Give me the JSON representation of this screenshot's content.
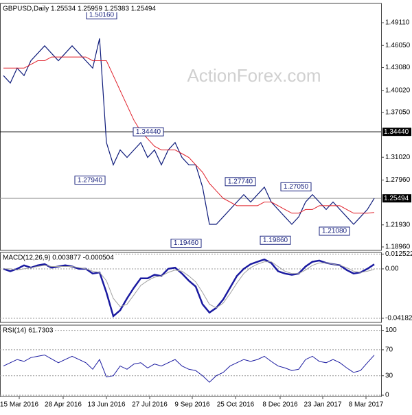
{
  "chart_data": [
    {
      "type": "line",
      "title": "GBPUSD,Daily  1.25534 1.25959 1.25383 1.25494",
      "watermark": "ActionForex.com",
      "x": [
        0,
        1,
        2,
        3,
        4,
        5,
        6,
        7,
        8,
        9,
        10,
        11,
        12,
        13,
        14,
        15,
        16,
        17,
        18,
        19,
        20,
        21,
        22,
        23,
        24,
        25,
        26,
        27,
        28,
        29,
        30,
        31,
        32,
        33,
        34,
        35,
        36,
        37,
        38,
        39,
        40,
        41,
        42,
        43,
        44,
        45,
        46,
        47,
        48,
        49,
        50,
        51,
        52,
        53,
        54
      ],
      "xlim": [
        -0.5,
        55
      ],
      "ylim": [
        1.185,
        1.517
      ],
      "grid": false,
      "yticks": [
        {
          "value": 1.4911,
          "label": "1.49110"
        },
        {
          "value": 1.4605,
          "label": "1.46050"
        },
        {
          "value": 1.4308,
          "label": "1.43080"
        },
        {
          "value": 1.4002,
          "label": "1.40020"
        },
        {
          "value": 1.3705,
          "label": "1.37050"
        },
        {
          "value": 1.3102,
          "label": "1.31020"
        },
        {
          "value": 1.2796,
          "label": "1.27960"
        },
        {
          "value": 1.2193,
          "label": "1.21930"
        },
        {
          "value": 1.1896,
          "label": "1.18960"
        }
      ],
      "series": [
        {
          "color": "#0d1a7a",
          "values": [
            1.42,
            1.41,
            1.43,
            1.42,
            1.44,
            1.45,
            1.46,
            1.45,
            1.44,
            1.45,
            1.46,
            1.45,
            1.44,
            1.43,
            1.47,
            1.33,
            1.3,
            1.32,
            1.31,
            1.32,
            1.33,
            1.31,
            1.32,
            1.3,
            1.32,
            1.33,
            1.31,
            1.3,
            1.3,
            1.27,
            1.22,
            1.22,
            1.23,
            1.24,
            1.25,
            1.26,
            1.25,
            1.26,
            1.27,
            1.25,
            1.24,
            1.23,
            1.22,
            1.23,
            1.25,
            1.26,
            1.25,
            1.24,
            1.25,
            1.24,
            1.23,
            1.22,
            1.23,
            1.24,
            1.25494
          ]
        },
        {
          "color": "#e0202a",
          "values": [
            1.43,
            1.43,
            1.43,
            1.43,
            1.435,
            1.44,
            1.44,
            1.445,
            1.445,
            1.445,
            1.445,
            1.445,
            1.445,
            1.44,
            1.44,
            1.44,
            1.42,
            1.4,
            1.38,
            1.36,
            1.345,
            1.335,
            1.325,
            1.32,
            1.32,
            1.32,
            1.315,
            1.31,
            1.3,
            1.29,
            1.275,
            1.265,
            1.255,
            1.25,
            1.245,
            1.245,
            1.245,
            1.245,
            1.25,
            1.25,
            1.245,
            1.24,
            1.235,
            1.235,
            1.24,
            1.24,
            1.245,
            1.245,
            1.245,
            1.245,
            1.24,
            1.235,
            1.235,
            1.235,
            1.236
          ]
        }
      ],
      "levels": [
        {
          "value": 1.3444,
          "label": "1.34440",
          "color": "#000000"
        },
        {
          "value": 1.25494,
          "label": "1.25494",
          "color": "#999999"
        }
      ],
      "annotations": [
        {
          "x": 14.3,
          "value": 1.5016,
          "label": "1.50160"
        },
        {
          "x": 12.6,
          "value": 1.2794,
          "label": "1.27940"
        },
        {
          "x": 21.1,
          "value": 1.3444,
          "label": "1.34440"
        },
        {
          "x": 26.6,
          "value": 1.1946,
          "label": "1.19460"
        },
        {
          "x": 34.5,
          "value": 1.2774,
          "label": "1.27740"
        },
        {
          "x": 42.6,
          "value": 1.2705,
          "label": "1.27050"
        },
        {
          "x": 39.6,
          "value": 1.1986,
          "label": "1.19860"
        },
        {
          "x": 48.2,
          "value": 1.2108,
          "label": "1.21080"
        }
      ]
    },
    {
      "type": "line",
      "title": "MACD(12,26,9) 0.003877 -0.000504",
      "x": [
        0,
        1,
        2,
        3,
        4,
        5,
        6,
        7,
        8,
        9,
        10,
        11,
        12,
        13,
        14,
        15,
        16,
        17,
        18,
        19,
        20,
        21,
        22,
        23,
        24,
        25,
        26,
        27,
        28,
        29,
        30,
        31,
        32,
        33,
        34,
        35,
        36,
        37,
        38,
        39,
        40,
        41,
        42,
        43,
        44,
        45,
        46,
        47,
        48,
        49,
        50,
        51,
        52,
        53,
        54
      ],
      "xlim": [
        -0.5,
        55
      ],
      "ylim": [
        -0.0453,
        0.0139
      ],
      "grid": true,
      "yticks": [
        0.012522,
        {
          "value": 0,
          "label": "0.00"
        },
        -0.041823
      ],
      "series": [
        {
          "color": "#1a1aa0",
          "values": [
            0.0,
            -0.002,
            0.0,
            0.003,
            0.001,
            0.003,
            0.004,
            0.001,
            0.002,
            0.003,
            0.002,
            0.0,
            0.0,
            -0.004,
            -0.003,
            -0.02,
            -0.04,
            -0.035,
            -0.025,
            -0.016,
            -0.008,
            -0.008,
            -0.005,
            -0.006,
            0.0,
            0.001,
            -0.004,
            -0.01,
            -0.015,
            -0.03,
            -0.037,
            -0.033,
            -0.026,
            -0.016,
            -0.006,
            0.0,
            0.004,
            0.006,
            0.008,
            0.005,
            -0.002,
            -0.004,
            -0.005,
            -0.004,
            0.002,
            0.006,
            0.007,
            0.005,
            0.004,
            0.003,
            -0.001,
            -0.004,
            -0.003,
            0.0,
            0.003877
          ]
        },
        {
          "color": "#a0a0a0",
          "values": [
            0.0,
            0.0,
            -0.001,
            0.0,
            0.001,
            0.002,
            0.003,
            0.002,
            0.002,
            0.002,
            0.002,
            0.001,
            0.0,
            -0.002,
            -0.003,
            -0.01,
            -0.025,
            -0.032,
            -0.03,
            -0.022,
            -0.014,
            -0.01,
            -0.007,
            -0.006,
            -0.003,
            -0.001,
            -0.002,
            -0.006,
            -0.011,
            -0.02,
            -0.03,
            -0.033,
            -0.029,
            -0.021,
            -0.012,
            -0.004,
            0.001,
            0.004,
            0.006,
            0.006,
            0.002,
            -0.002,
            -0.004,
            -0.004,
            -0.001,
            0.003,
            0.005,
            0.005,
            0.004,
            0.003,
            0.001,
            -0.002,
            -0.003,
            -0.002,
            -0.000504
          ]
        }
      ]
    },
    {
      "type": "line",
      "title": "RSI(14) 61.7303",
      "x": [
        0,
        1,
        2,
        3,
        4,
        5,
        6,
        7,
        8,
        9,
        10,
        11,
        12,
        13,
        14,
        15,
        16,
        17,
        18,
        19,
        20,
        21,
        22,
        23,
        24,
        25,
        26,
        27,
        28,
        29,
        30,
        31,
        32,
        33,
        34,
        35,
        36,
        37,
        38,
        39,
        40,
        41,
        42,
        43,
        44,
        45,
        46,
        47,
        48,
        49,
        50,
        51,
        52,
        53,
        54
      ],
      "xlim": [
        -0.5,
        55
      ],
      "ylim": [
        -2,
        108
      ],
      "grid": true,
      "yticks": [
        100,
        70,
        30,
        0
      ],
      "xticks": [
        {
          "value": 2.3,
          "label": "15 Mar 2016"
        },
        {
          "value": 8.7,
          "label": "28 Apr 2016"
        },
        {
          "value": 15,
          "label": "13 Jun 2016"
        },
        {
          "value": 21.3,
          "label": "27 Jul 2016"
        },
        {
          "value": 27.5,
          "label": "9 Sep 2016"
        },
        {
          "value": 33.8,
          "label": "25 Oct 2016"
        },
        {
          "value": 40.3,
          "label": "8 Dec 2016"
        },
        {
          "value": 46.5,
          "label": "23 Jan 2017"
        },
        {
          "value": 52.8,
          "label": "8 Mar 2017"
        }
      ],
      "series": [
        {
          "color": "#1a1aa0",
          "values": [
            45,
            50,
            55,
            52,
            58,
            60,
            62,
            56,
            50,
            55,
            60,
            55,
            50,
            40,
            55,
            28,
            30,
            45,
            40,
            48,
            50,
            42,
            48,
            45,
            50,
            55,
            45,
            40,
            38,
            30,
            20,
            30,
            35,
            45,
            50,
            55,
            52,
            55,
            60,
            52,
            45,
            42,
            38,
            40,
            55,
            60,
            52,
            50,
            55,
            50,
            42,
            35,
            38,
            50,
            61.7303
          ]
        }
      ]
    }
  ]
}
